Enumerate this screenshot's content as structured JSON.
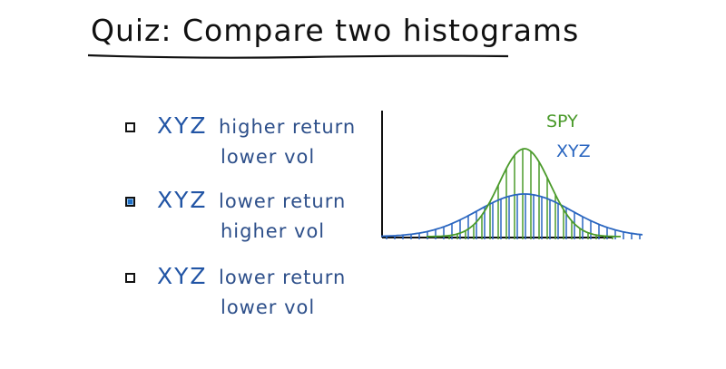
{
  "title": "Quiz: Compare two histograms",
  "options": [
    {
      "ticker": "XYZ",
      "line1": "higher return",
      "line2": "lower vol",
      "selected": false
    },
    {
      "ticker": "XYZ",
      "line1": "lower return",
      "line2": "higher vol",
      "selected": true
    },
    {
      "ticker": "XYZ",
      "line1": "lower return",
      "line2": "lower vol",
      "selected": false
    }
  ],
  "chart": {
    "legend_spy": "SPY",
    "legend_xyz": "XYZ",
    "colors": {
      "spy": "#4a9a2a",
      "xyz": "#2a66c0",
      "axis": "#111111"
    }
  }
}
